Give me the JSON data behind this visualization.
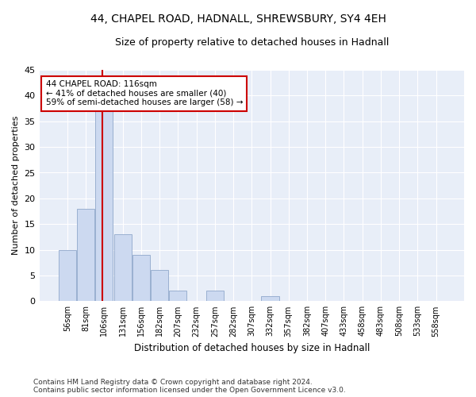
{
  "title1": "44, CHAPEL ROAD, HADNALL, SHREWSBURY, SY4 4EH",
  "title2": "Size of property relative to detached houses in Hadnall",
  "xlabel": "Distribution of detached houses by size in Hadnall",
  "ylabel": "Number of detached properties",
  "categories": [
    "56sqm",
    "81sqm",
    "106sqm",
    "131sqm",
    "156sqm",
    "182sqm",
    "207sqm",
    "232sqm",
    "257sqm",
    "282sqm",
    "307sqm",
    "332sqm",
    "357sqm",
    "382sqm",
    "407sqm",
    "433sqm",
    "458sqm",
    "483sqm",
    "508sqm",
    "533sqm",
    "558sqm"
  ],
  "values": [
    10,
    18,
    37,
    13,
    9,
    6,
    2,
    0,
    2,
    0,
    0,
    1,
    0,
    0,
    0,
    0,
    0,
    0,
    0,
    0,
    0
  ],
  "bar_color": "#ccd9f0",
  "bar_edge_color": "#9ab0d0",
  "annotation_text": "44 CHAPEL ROAD: 116sqm\n← 41% of detached houses are smaller (40)\n59% of semi-detached houses are larger (58) →",
  "annotation_box_color": "white",
  "annotation_box_edge_color": "#cc0000",
  "red_line_color": "#cc0000",
  "ylim": [
    0,
    45
  ],
  "yticks": [
    0,
    5,
    10,
    15,
    20,
    25,
    30,
    35,
    40,
    45
  ],
  "background_color": "#e8eef8",
  "grid_color": "white",
  "footer1": "Contains HM Land Registry data © Crown copyright and database right 2024.",
  "footer2": "Contains public sector information licensed under the Open Government Licence v3.0."
}
